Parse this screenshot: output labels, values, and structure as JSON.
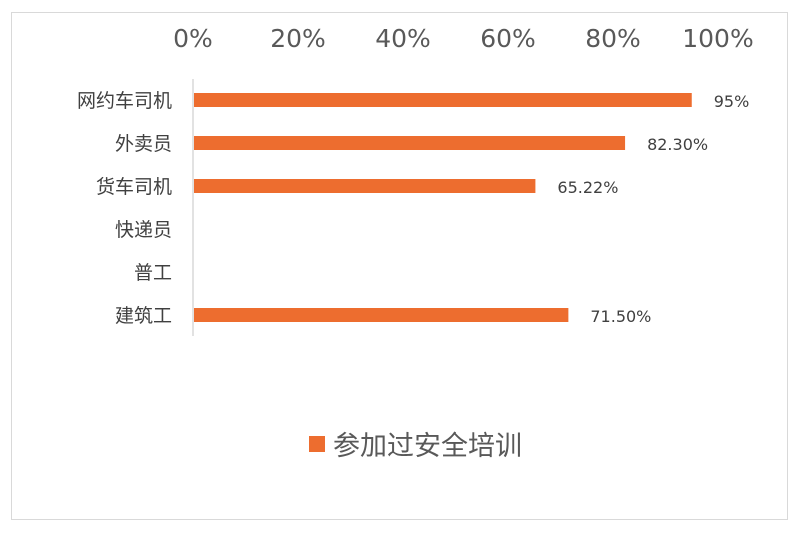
{
  "chart_data": {
    "type": "bar",
    "orientation": "horizontal",
    "categories": [
      "网约车司机",
      "外卖员",
      "货车司机",
      "快递员",
      "普工",
      "建筑工"
    ],
    "series": [
      {
        "name": "参加过安全培训",
        "values": [
          95,
          82.3,
          65.22,
          null,
          null,
          71.5
        ],
        "data_labels": [
          "95%",
          "82.30%",
          "65.22%",
          "",
          "",
          "71.50%"
        ],
        "color": "#ED6D2F"
      }
    ],
    "xaxis": {
      "position": "top",
      "range": [
        0,
        100
      ],
      "ticks": [
        0,
        20,
        40,
        60,
        80,
        100
      ],
      "tick_labels": [
        "0%",
        "20%",
        "40%",
        "60%",
        "80%",
        "100%"
      ]
    },
    "grid": false,
    "legend": {
      "position": "bottom",
      "entries": [
        "参加过安全培训"
      ]
    },
    "title": "",
    "xlabel": "",
    "ylabel": ""
  }
}
